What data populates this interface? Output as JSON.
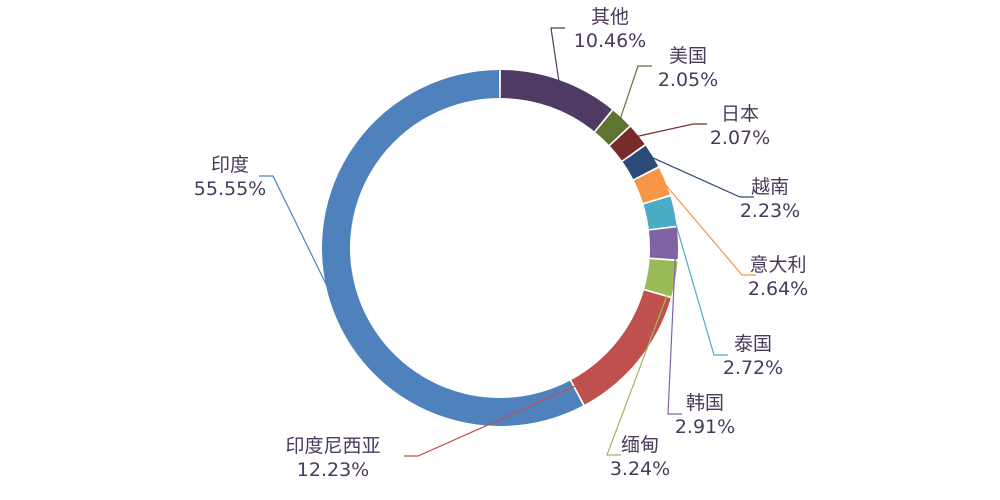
{
  "chart_data": {
    "type": "pie",
    "donut": true,
    "title": "",
    "legend": "none",
    "unit": "%",
    "slices": [
      {
        "name": "其他",
        "value": 10.46,
        "label": "10.46%",
        "color": "#4f3a63"
      },
      {
        "name": "美国",
        "value": 2.05,
        "label": "2.05%",
        "color": "#5e7531"
      },
      {
        "name": "日本",
        "value": 2.07,
        "label": "2.07%",
        "color": "#772b2a"
      },
      {
        "name": "越南",
        "value": 2.23,
        "label": "2.23%",
        "color": "#2b4a76"
      },
      {
        "name": "意大利",
        "value": 2.64,
        "label": "2.64%",
        "color": "#f79646"
      },
      {
        "name": "泰国",
        "value": 2.72,
        "label": "2.72%",
        "color": "#4bacc6"
      },
      {
        "name": "韩国",
        "value": 2.91,
        "label": "2.91%",
        "color": "#8064a2"
      },
      {
        "name": "缅甸",
        "value": 3.24,
        "label": "3.24%",
        "color": "#9bbb59"
      },
      {
        "name": "印度尼西亚",
        "value": 12.23,
        "label": "12.23%",
        "color": "#c0504d"
      },
      {
        "name": "印度",
        "value": 55.55,
        "label": "55.55%",
        "color": "#4f81bd"
      }
    ]
  }
}
